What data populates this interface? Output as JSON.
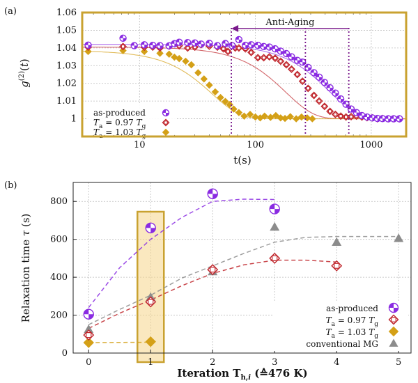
{
  "chart_data": [
    {
      "panel_label": "(a)",
      "type": "scatter",
      "x_scale": "log",
      "xlabel": "t(s)",
      "ylabel": "g(2)(t)",
      "xlim": [
        3.2,
        2000
      ],
      "ylim": [
        0.99,
        1.06
      ],
      "x_ticks": [
        {
          "value": 10,
          "label": "10"
        },
        {
          "value": 100,
          "label": "100"
        },
        {
          "value": 1000,
          "label": "1000"
        }
      ],
      "y_ticks": [
        {
          "value": 1.0,
          "label": "1"
        },
        {
          "value": 1.01,
          "label": "1.01"
        },
        {
          "value": 1.02,
          "label": "1.02"
        },
        {
          "value": 1.03,
          "label": "1.03"
        },
        {
          "value": 1.04,
          "label": "1.04"
        },
        {
          "value": 1.05,
          "label": "1.05"
        },
        {
          "value": 1.06,
          "label": "1.06"
        }
      ],
      "grid": true,
      "frame_color": "#c9a230",
      "annotation": {
        "text": "Anti-Aging",
        "arrow_from": 640,
        "arrow_to": 62
      },
      "vlines": [
        62,
        270,
        640
      ],
      "legend": {
        "position": "bottom-left"
      },
      "series": [
        {
          "name_parts": [
            "as-produced"
          ],
          "color": "#8a2be2",
          "marker": "half-circle",
          "fit": {
            "A": 0.042,
            "tau": 640,
            "beta": 1.8
          },
          "points": [
            [
              3.6,
              1.0416
            ],
            [
              7.2,
              1.0455
            ],
            [
              9,
              1.0413
            ],
            [
              11,
              1.0418
            ],
            [
              13,
              1.0415
            ],
            [
              15,
              1.0413
            ],
            [
              18,
              1.0412
            ],
            [
              20,
              1.0424
            ],
            [
              22,
              1.0432
            ],
            [
              26,
              1.043
            ],
            [
              30,
              1.0428
            ],
            [
              34,
              1.0422
            ],
            [
              40,
              1.0426
            ],
            [
              47,
              1.0413
            ],
            [
              55,
              1.0425
            ],
            [
              63,
              1.0413
            ],
            [
              72,
              1.0447
            ],
            [
              82,
              1.0415
            ],
            [
              92,
              1.0418
            ],
            [
              105,
              1.0415
            ],
            [
              118,
              1.0408
            ],
            [
              132,
              1.0405
            ],
            [
              148,
              1.0395
            ],
            [
              165,
              1.0382
            ],
            [
              185,
              1.0368
            ],
            [
              205,
              1.035
            ],
            [
              230,
              1.033
            ],
            [
              255,
              1.032
            ],
            [
              285,
              1.029
            ],
            [
              320,
              1.026
            ],
            [
              355,
              1.0235
            ],
            [
              395,
              1.0205
            ],
            [
              440,
              1.0175
            ],
            [
              490,
              1.0145
            ],
            [
              545,
              1.0112
            ],
            [
              605,
              1.0082
            ],
            [
              670,
              1.0055
            ],
            [
              745,
              1.0035
            ],
            [
              830,
              1.0018
            ],
            [
              920,
              1.001
            ],
            [
              1020,
              1.0005
            ],
            [
              1130,
              1.0002
            ],
            [
              1250,
              1.0001
            ],
            [
              1400,
              1.0
            ],
            [
              1560,
              1.0
            ],
            [
              1750,
              1.0
            ]
          ]
        },
        {
          "name_parts": [
            "T",
            "a",
            " = 0.97 ",
            "T",
            "g"
          ],
          "color": "#c0262c",
          "marker": "half-diamond",
          "fit": {
            "A": 0.0405,
            "tau": 270,
            "beta": 1.8
          },
          "points": [
            [
              3.6,
              1.0405
            ],
            [
              7.2,
              1.0408
            ],
            [
              11,
              1.0405
            ],
            [
              13,
              1.0405
            ],
            [
              15,
              1.04
            ],
            [
              18,
              1.041
            ],
            [
              22,
              1.0412
            ],
            [
              26,
              1.04
            ],
            [
              30,
              1.0405
            ],
            [
              34,
              1.0418
            ],
            [
              40,
              1.041
            ],
            [
              47,
              1.0405
            ],
            [
              53,
              1.0395
            ],
            [
              58,
              1.038
            ],
            [
              67,
              1.04
            ],
            [
              72,
              1.04
            ],
            [
              82,
              1.0395
            ],
            [
              92,
              1.0375
            ],
            [
              105,
              1.0345
            ],
            [
              118,
              1.0345
            ],
            [
              132,
              1.035
            ],
            [
              148,
              1.0342
            ],
            [
              165,
              1.0325
            ],
            [
              185,
              1.0305
            ],
            [
              205,
              1.028
            ],
            [
              230,
              1.025
            ],
            [
              255,
              1.0212
            ],
            [
              285,
              1.0172
            ],
            [
              320,
              1.0132
            ],
            [
              355,
              1.01
            ],
            [
              395,
              1.007
            ],
            [
              440,
              1.0042
            ],
            [
              490,
              1.0025
            ],
            [
              545,
              1.0015
            ],
            [
              605,
              1.001
            ],
            [
              670,
              1.0012
            ],
            [
              745,
              1.0015
            ],
            [
              830,
              1.001
            ],
            [
              920,
              1.0006
            ],
            [
              1020,
              1.0005
            ],
            [
              1130,
              1.0
            ],
            [
              1250,
              1.0002
            ],
            [
              1400,
              1.0
            ],
            [
              1560,
              1.0
            ],
            [
              1750,
              1.0
            ]
          ]
        },
        {
          "name_parts": [
            "T",
            "a",
            " = 1.03 ",
            "T",
            "g"
          ],
          "color": "#d4a017",
          "marker": "diamond",
          "fit": {
            "A": 0.0385,
            "tau": 62,
            "beta": 1.8
          },
          "points": [
            [
              3.6,
              1.038
            ],
            [
              7.2,
              1.0385
            ],
            [
              11,
              1.038
            ],
            [
              15,
              1.037
            ],
            [
              18,
              1.0365
            ],
            [
              20,
              1.0348
            ],
            [
              22,
              1.034
            ],
            [
              25,
              1.0325
            ],
            [
              28,
              1.0305
            ],
            [
              32,
              1.026
            ],
            [
              36,
              1.0225
            ],
            [
              40,
              1.019
            ],
            [
              45,
              1.0152
            ],
            [
              50,
              1.012
            ],
            [
              55,
              1.0098
            ],
            [
              60,
              1.008
            ],
            [
              65,
              1.0055
            ],
            [
              72,
              1.0035
            ],
            [
              80,
              1.0015
            ],
            [
              90,
              1.0025
            ],
            [
              100,
              1.001
            ],
            [
              110,
              1.0005
            ],
            [
              120,
              1.0015
            ],
            [
              135,
              1.0008
            ],
            [
              150,
              1.0018
            ],
            [
              165,
              1.0005
            ],
            [
              180,
              1.0002
            ],
            [
              200,
              1.0012
            ],
            [
              225,
              1.0
            ],
            [
              250,
              1.001
            ],
            [
              280,
              1.0005
            ],
            [
              310,
              1.0
            ]
          ]
        }
      ]
    },
    {
      "panel_label": "(b)",
      "type": "scatter",
      "xlabel_parts": [
        "Iteration T",
        "h,",
        "i",
        " (≙476 K)"
      ],
      "ylabel_parts": [
        "Relaxation time ",
        "τ",
        " (s)"
      ],
      "xlim": [
        -0.25,
        5.2
      ],
      "ylim": [
        0,
        900
      ],
      "x_ticks": [
        {
          "value": 0,
          "label": "0"
        },
        {
          "value": 1,
          "label": "1"
        },
        {
          "value": 2,
          "label": "2"
        },
        {
          "value": 3,
          "label": "3"
        },
        {
          "value": 4,
          "label": "4"
        },
        {
          "value": 5,
          "label": "5"
        }
      ],
      "y_ticks": [
        {
          "value": 0,
          "label": "0"
        },
        {
          "value": 200,
          "label": "200"
        },
        {
          "value": 400,
          "label": "400"
        },
        {
          "value": 600,
          "label": "600"
        },
        {
          "value": 800,
          "label": "800"
        }
      ],
      "grid": true,
      "highlight_x": 1,
      "legend": {
        "position": "bottom-right"
      },
      "series": [
        {
          "name_parts": [
            "as-produced"
          ],
          "color": "#8a2be2",
          "marker": "half-circle",
          "x": [
            0,
            1,
            2,
            3
          ],
          "values": [
            205,
            660,
            840,
            760
          ],
          "trend": [
            [
              0,
              240
            ],
            [
              0.5,
              450
            ],
            [
              1,
              600
            ],
            [
              1.5,
              715
            ],
            [
              2,
              800
            ],
            [
              2.5,
              812
            ],
            [
              3,
              810
            ]
          ]
        },
        {
          "name_parts": [
            "T",
            "a",
            " = 0.97 ",
            "T",
            "g"
          ],
          "color": "#c0262c",
          "marker": "half-diamond",
          "x": [
            0,
            1,
            2,
            3,
            4
          ],
          "values": [
            95,
            270,
            440,
            500,
            460
          ],
          "trend": [
            [
              0,
              130
            ],
            [
              0.5,
              210
            ],
            [
              1,
              280
            ],
            [
              1.5,
              355
            ],
            [
              2,
              420
            ],
            [
              2.5,
              465
            ],
            [
              3,
              490
            ],
            [
              3.5,
              490
            ],
            [
              4,
              480
            ]
          ]
        },
        {
          "name_parts": [
            "T",
            "a",
            " = 1.03 ",
            "T",
            "g"
          ],
          "color": "#d4a017",
          "marker": "diamond",
          "x": [
            0,
            1
          ],
          "values": [
            55,
            60
          ],
          "trend": [
            [
              0,
              55
            ],
            [
              1,
              57
            ]
          ]
        },
        {
          "name_parts": [
            "conventional MG"
          ],
          "color": "#8c8c8c",
          "marker": "triangle",
          "x": [
            0,
            1,
            2,
            3,
            4,
            5
          ],
          "values": [
            125,
            295,
            430,
            665,
            585,
            605
          ],
          "trend": [
            [
              0,
              150
            ],
            [
              0.5,
              230
            ],
            [
              1,
              305
            ],
            [
              1.5,
              395
            ],
            [
              2,
              460
            ],
            [
              2.5,
              525
            ],
            [
              3,
              585
            ],
            [
              3.5,
              610
            ],
            [
              4,
              615
            ],
            [
              4.5,
              615
            ],
            [
              5,
              615
            ]
          ]
        }
      ]
    }
  ]
}
